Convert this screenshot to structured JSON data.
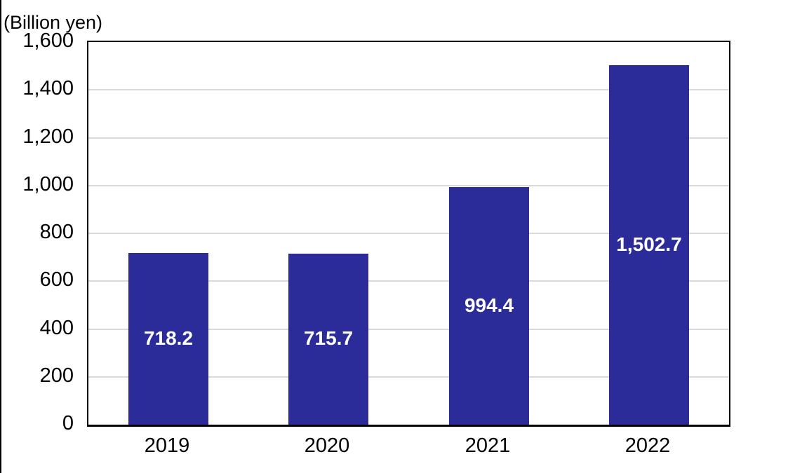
{
  "chart": {
    "unit_label": "(Billion yen)"
  },
  "chart_data": {
    "type": "bar",
    "title": "",
    "xlabel": "",
    "ylabel": "(Billion yen)",
    "categories": [
      "2019",
      "2020",
      "2021",
      "2022"
    ],
    "values": [
      718.2,
      715.7,
      994.4,
      1502.7
    ],
    "value_labels": [
      "718.2",
      "715.7",
      "994.4",
      "1,502.7"
    ],
    "ylim": [
      0,
      1600
    ],
    "ytick_interval": 200,
    "ytick_labels": [
      "0",
      "200",
      "400",
      "600",
      "800",
      "1,000",
      "1,200",
      "1,400",
      "1,600"
    ],
    "grid": "horizontal",
    "legend": "none",
    "bar_color": "#2B2C99",
    "value_label_color": "#FFFFFF",
    "gridline_color": "#D9D9D9",
    "axis_text_color": "#000000"
  }
}
